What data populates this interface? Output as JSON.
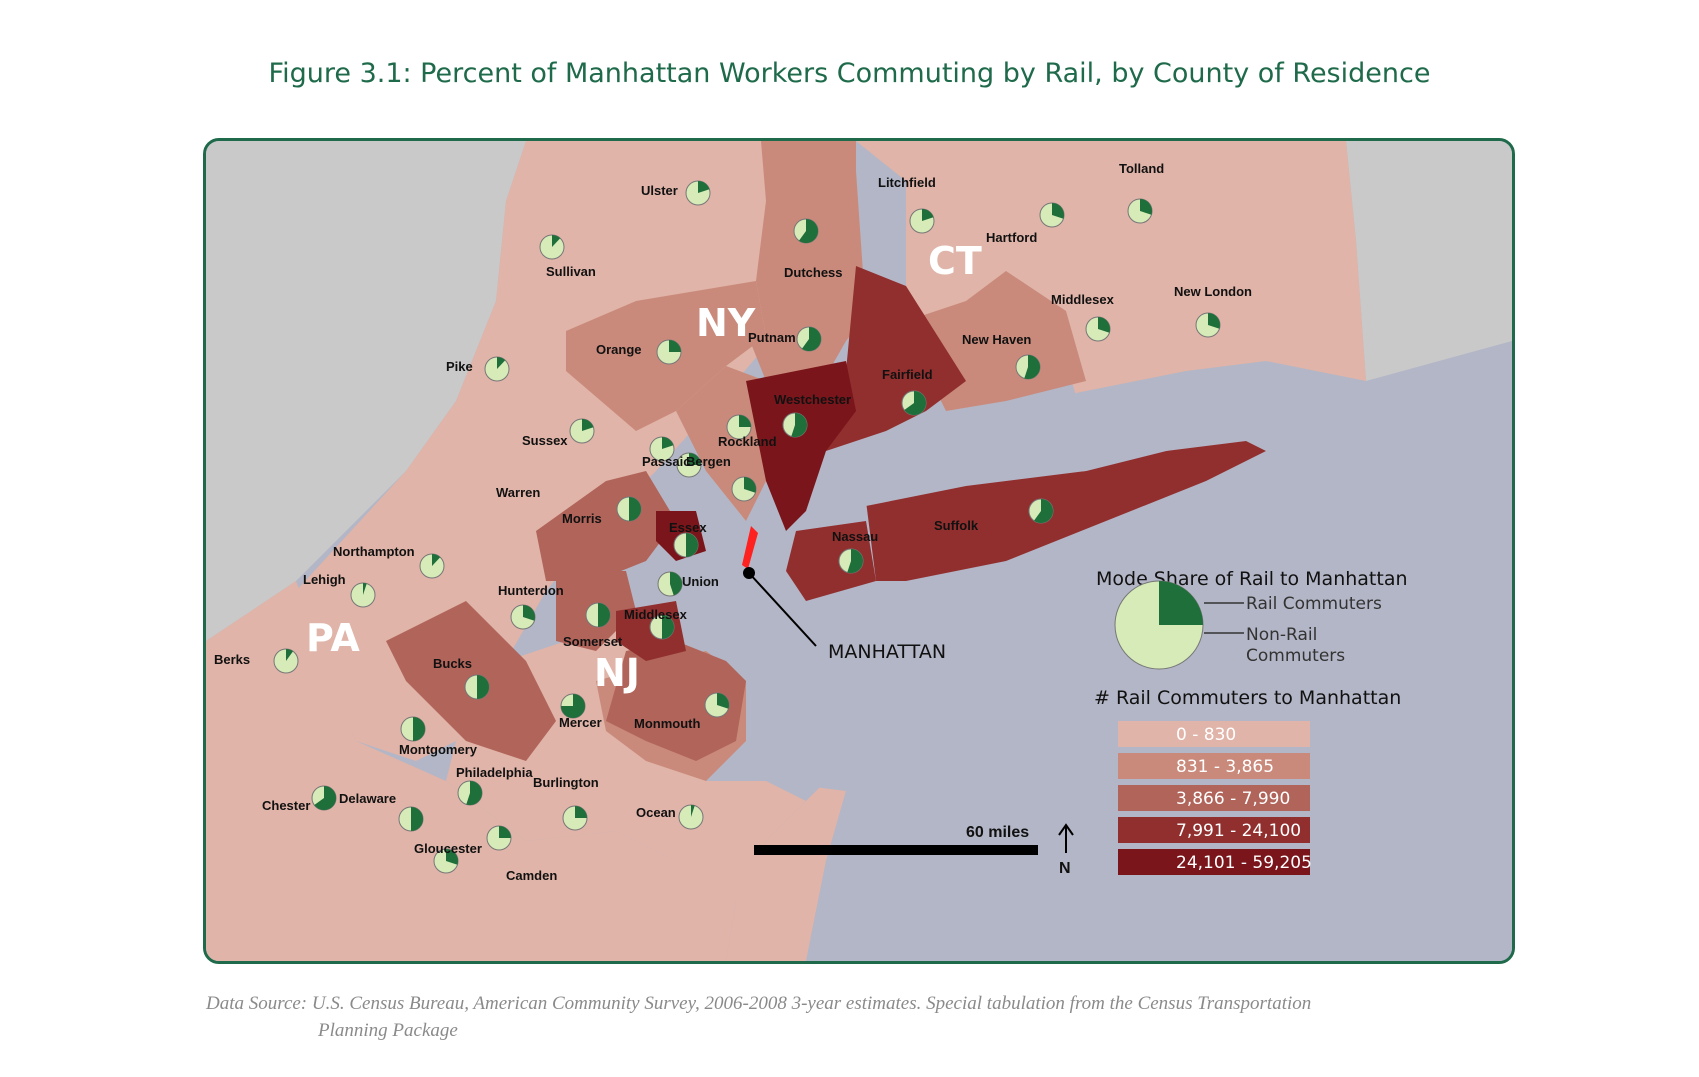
{
  "title": "Figure 3.1: Percent of Manhattan Workers Commuting by Rail, by County of Residence",
  "states": [
    {
      "name": "NY"
    },
    {
      "name": "CT"
    },
    {
      "name": "PA"
    },
    {
      "name": "NJ"
    }
  ],
  "counties": [
    {
      "name": "Ulster",
      "rail_share": 0.2
    },
    {
      "name": "Sullivan",
      "rail_share": 0.12
    },
    {
      "name": "Dutchess",
      "rail_share": 0.6
    },
    {
      "name": "Litchfield",
      "rail_share": 0.2
    },
    {
      "name": "Tolland",
      "rail_share": 0.3
    },
    {
      "name": "Hartford",
      "rail_share": 0.3
    },
    {
      "name": "Middlesex",
      "rail_share": 0.3
    },
    {
      "name": "New London",
      "rail_share": 0.3
    },
    {
      "name": "Orange",
      "rail_share": 0.25
    },
    {
      "name": "Putnam",
      "rail_share": 0.6
    },
    {
      "name": "New Haven",
      "rail_share": 0.55
    },
    {
      "name": "Pike",
      "rail_share": 0.12
    },
    {
      "name": "Fairfield",
      "rail_share": 0.65
    },
    {
      "name": "Westchester",
      "rail_share": 0.55
    },
    {
      "name": "Rockland",
      "rail_share": 0.25
    },
    {
      "name": "Sussex",
      "rail_share": 0.2
    },
    {
      "name": "Passaic",
      "rail_share": 0.2
    },
    {
      "name": "Bergen",
      "rail_share": 0.25
    },
    {
      "name": "Warren",
      "rail_share": 0.3
    },
    {
      "name": "Morris",
      "rail_share": 0.5
    },
    {
      "name": "Essex",
      "rail_share": 0.5
    },
    {
      "name": "Suffolk",
      "rail_share": 0.6
    },
    {
      "name": "Nassau",
      "rail_share": 0.55
    },
    {
      "name": "Northampton",
      "rail_share": 0.12
    },
    {
      "name": "Lehigh",
      "rail_share": 0.05
    },
    {
      "name": "Hunterdon",
      "rail_share": 0.3
    },
    {
      "name": "Union",
      "rail_share": 0.45
    },
    {
      "name": "Middlesex",
      "rail_share": 0.5
    },
    {
      "name": "Somerset",
      "rail_share": 0.5
    },
    {
      "name": "Berks",
      "rail_share": 0.1
    },
    {
      "name": "Bucks",
      "rail_share": 0.5
    },
    {
      "name": "Mercer",
      "rail_share": 0.75
    },
    {
      "name": "Monmouth",
      "rail_share": 0.3
    },
    {
      "name": "Montgomery",
      "rail_share": 0.5
    },
    {
      "name": "Philadelphia",
      "rail_share": 0.55
    },
    {
      "name": "Burlington",
      "rail_share": 0.25
    },
    {
      "name": "Chester",
      "rail_share": 0.65
    },
    {
      "name": "Delaware",
      "rail_share": 0.5
    },
    {
      "name": "Ocean",
      "rail_share": 0.05
    },
    {
      "name": "Gloucester",
      "rail_share": 0.25
    },
    {
      "name": "Camden",
      "rail_share": 0.3
    }
  ],
  "manhattan_label": "MANHATTAN",
  "scale": {
    "label": "60 miles",
    "north": "N"
  },
  "legend": {
    "pie_title": "Mode Share of Rail to Manhattan",
    "rail_label": "Rail Commuters",
    "nonrail_label_1": "Non-Rail",
    "nonrail_label_2": "Commuters",
    "count_title": "# Rail Commuters to Manhattan",
    "classes": [
      {
        "label": "0 - 830",
        "color": "#e0b4a8"
      },
      {
        "label": "831 - 3,865",
        "color": "#c98a7b"
      },
      {
        "label": "3,866 - 7,990",
        "color": "#b0645a"
      },
      {
        "label": "7,991 - 24,100",
        "color": "#912f2f"
      },
      {
        "label": "24,101 - 59,205",
        "color": "#7a161b"
      }
    ]
  },
  "colors": {
    "rail": "#1f6f3a",
    "nonrail": "#d6ebb8",
    "water": "#b3b6c6",
    "land_gray": "#c9c9c9",
    "accent": "#1e6a4a"
  },
  "source_line1": "Data Source: U.S. Census Bureau, American Community Survey, 2006-2008 3-year estimates. Special tabulation from the Census Transportation",
  "source_line2": "Planning Package"
}
